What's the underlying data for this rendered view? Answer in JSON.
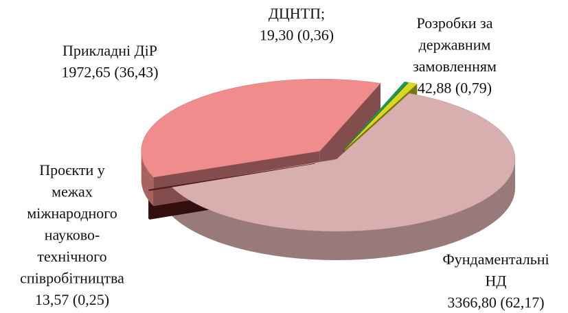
{
  "chart_data": {
    "type": "pie3d",
    "categories": [
      "Фундаментальні НД",
      "Проєкти у межах міжнародного науково-технічного співробітництва",
      "Прикладні ДіР",
      "ДЦНТП;",
      "Розробки за державним замовленням"
    ],
    "values": [
      3366.8,
      13.57,
      1972.65,
      19.3,
      42.88
    ],
    "value_labels": [
      "3366,80 (62,17)",
      "13,57 (0,25)",
      "1972,65 (36,43)",
      "19,30 (0,36)",
      "42,88 (0,79)"
    ],
    "colors": [
      "#d9aeae",
      "#5a1a1a",
      "#f08c8c",
      "#1f9a55",
      "#d8d820"
    ]
  }
}
